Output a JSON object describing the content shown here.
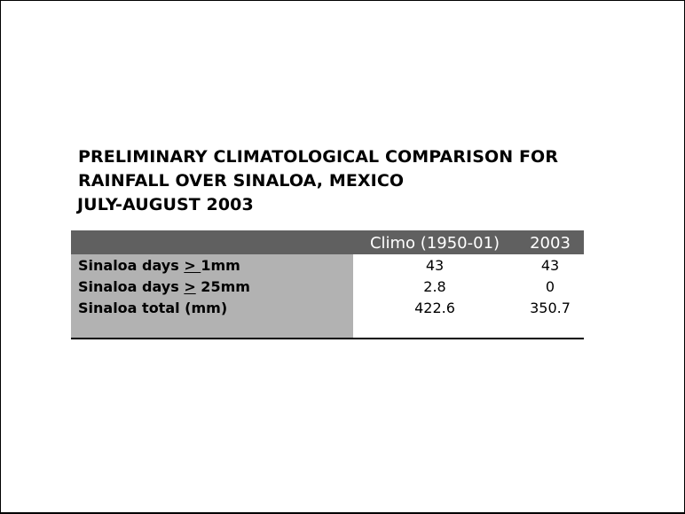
{
  "title": {
    "line1": "PRELIMINARY CLIMATOLOGICAL COMPARISON FOR",
    "line2": "RAINFALL OVER SINALOA, MEXICO",
    "line3": "JULY-AUGUST 2003"
  },
  "table": {
    "columns": [
      "Climo (1950-01)",
      "2003"
    ],
    "rows": [
      {
        "label_prefix": "Sinaloa days ",
        "label_underlined": "> ",
        "label_suffix": "1mm",
        "climo": "43",
        "year2003": "43"
      },
      {
        "label_prefix": "Sinaloa days ",
        "label_underlined": ">",
        "label_suffix": " 25mm",
        "climo": "2.8",
        "year2003": "0"
      },
      {
        "label_prefix": "Sinaloa total (mm)",
        "label_underlined": "",
        "label_suffix": "",
        "climo": "422.6",
        "year2003": "350.7"
      }
    ]
  },
  "colors": {
    "header_bg": "#606060",
    "label_bg": "#b2b2b2",
    "header_text": "#ffffff"
  }
}
